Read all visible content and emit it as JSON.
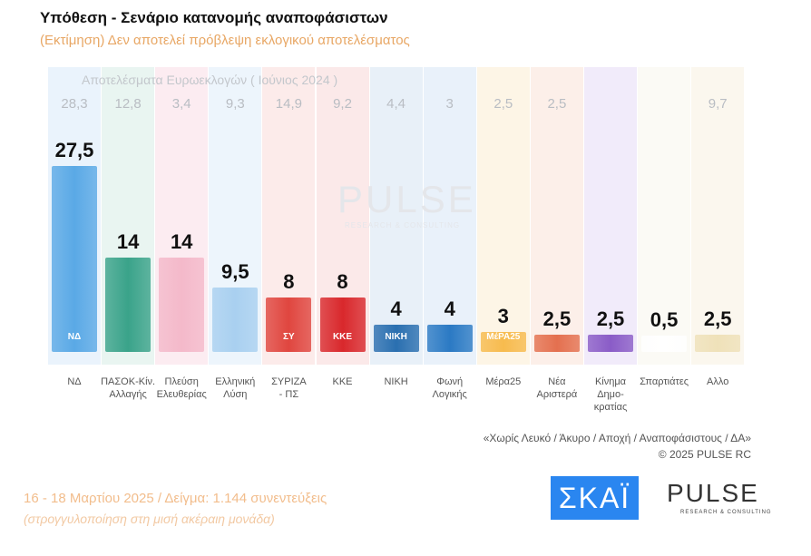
{
  "title": "Υπόθεση - Σενάριο κατανομής αναποφάσιστων",
  "subtitle": "(Εκτίμηση)   Δεν αποτελεί πρόβλεψη εκλογικού αποτελέσματος",
  "watermark": "PULSE",
  "watermark_sub": "RESEARCH & CONSULTING",
  "chart_data": {
    "type": "bar",
    "title": "Υπόθεση - Σενάριο κατανομής αναποφάσιστων",
    "categories": [
      "ΝΔ",
      "ΠΑΣΟΚ-Κίν.\nΑλλαγής",
      "Πλεύση\nΕλευθερίας",
      "Ελληνική\nΛύση",
      "ΣΥΡΙΖΑ\n- ΠΣ",
      "ΚΚΕ",
      "ΝΙΚΗ",
      "Φωνή\nΛογικής",
      "Μέρα25",
      "Νέα\nΑριστερά",
      "Κίνημα\nΔημο-\nκρατίας",
      "Σπαρτιάτες",
      "Αλλο"
    ],
    "values": [
      27.5,
      14,
      14,
      9.5,
      8,
      8,
      4,
      4,
      3,
      2.5,
      2.5,
      0.5,
      2.5
    ],
    "value_labels": [
      "27,5",
      "14",
      "14",
      "9,5",
      "8",
      "8",
      "4",
      "4",
      "3",
      "2,5",
      "2,5",
      "0,5",
      "2,5"
    ],
    "previous_title": "Αποτελέσματα Ευρωεκλογών  ( Ιούνιος 2024 )",
    "previous_labels": [
      "28,3",
      "12,8",
      "3,4",
      "9,3",
      "14,9",
      "9,2",
      "4,4",
      "3",
      "2,5",
      "2,5",
      "",
      "",
      "9,7"
    ],
    "colors": [
      "#5aa9e6",
      "#3aa38a",
      "#f4b9ca",
      "#a9d0f0",
      "#e0463f",
      "#d9282c",
      "#2a6fb0",
      "#2b7ac4",
      "#f7bb4e",
      "#e4704f",
      "#8a5cc7",
      "#ffffff",
      "#efe1b9"
    ],
    "column_tints": [
      "#eaf3fc",
      "#e9f5f1",
      "#fcecf1",
      "#edf5fc",
      "#fcebea",
      "#fbe9e9",
      "#e8f0f8",
      "#e9f1fa",
      "#fdf5e6",
      "#fcefe9",
      "#f1ebfa",
      "#fbfaf5",
      "#fbf7ee"
    ],
    "logo_texts": [
      "ΝΔ",
      "",
      "",
      "",
      "ΣΥ",
      "ΚΚΕ",
      "ΝΙΚΗ",
      "",
      "ΜέΡΑ25",
      "",
      "",
      "",
      ""
    ],
    "ylim": [
      0,
      30
    ]
  },
  "footer": {
    "note": "«Χωρίς Λευκό / Άκυρο / Αποχή / Αναποφάσιστους / ΔΑ»",
    "copyright": "©  2025  PULSE RC",
    "date": "16 - 18 Μαρτίου 2025  /  Δείγμα:  1.144 συνεντεύξεις",
    "rounding": "(στρογγυλοποίηση στη μισή ακέραιη μονάδα)",
    "skai_logo": "ΣΚΑΪ",
    "pulse_logo": "PULSE",
    "pulse_sub": "RESEARCH & CONSULTING"
  }
}
